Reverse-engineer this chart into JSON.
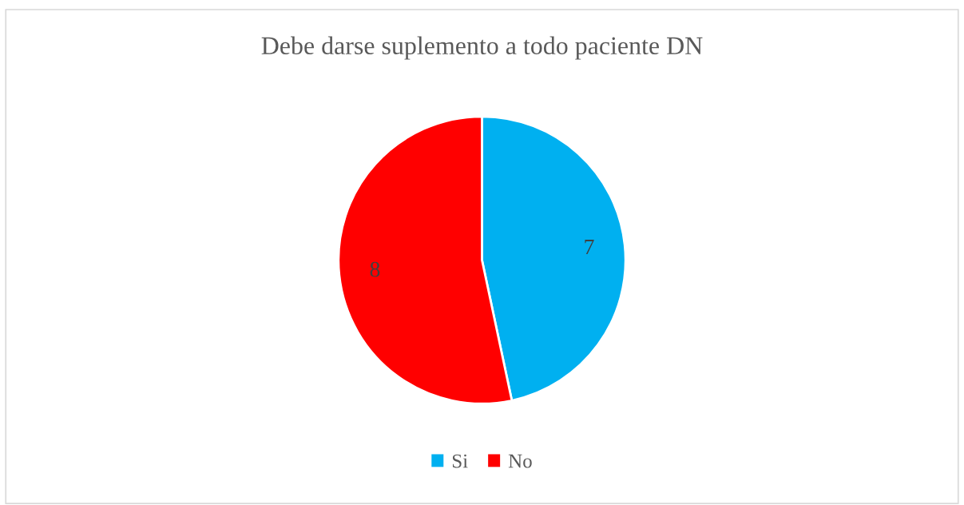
{
  "chart_data": {
    "type": "pie",
    "title": "Debe darse suplemento a todo paciente DN",
    "categories": [
      "Si",
      "No"
    ],
    "values": [
      7,
      8
    ],
    "colors": [
      "#00b0f0",
      "#ff0000"
    ],
    "data_labels": true,
    "legend": "bottom"
  }
}
